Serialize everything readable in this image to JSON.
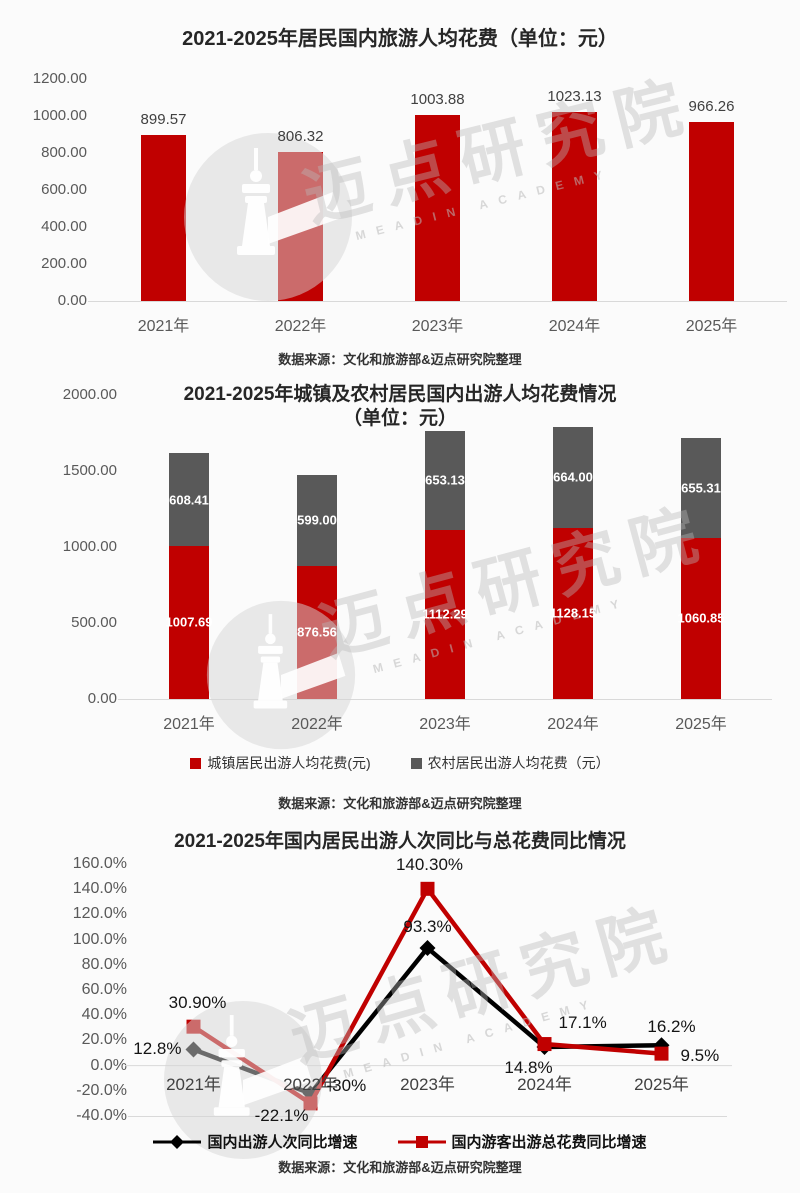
{
  "source_note": "数据来源：文化和旅游部&迈点研究院整理",
  "watermark": {
    "cn": "迈点研究院",
    "en": "MEADIN ACADEMY"
  },
  "colors": {
    "red": "#c00000",
    "gray": "#595959",
    "black": "#000000",
    "axis_line": "#d9d9d9"
  },
  "chart_data": [
    {
      "type": "bar",
      "title": "2021-2025年居民国内旅游人均花费（单位：元）",
      "categories": [
        "2021年",
        "2022年",
        "2023年",
        "2024年",
        "2025年"
      ],
      "values": [
        899.57,
        806.32,
        1003.88,
        1023.13,
        966.26
      ],
      "value_labels": [
        "899.57",
        "806.32",
        "1003.88",
        "1023.13",
        "966.26"
      ],
      "ylim": [
        0,
        1200
      ],
      "yticks": [
        "1200.00",
        "1000.00",
        "800.00",
        "600.00",
        "400.00",
        "200.00",
        "0.00"
      ],
      "bar_color": "#c00000",
      "grid": false,
      "legend_position": "none"
    },
    {
      "type": "bar",
      "subtype": "stacked",
      "title": "2021-2025年城镇及农村居民国内出游人均花费情况",
      "subtitle": "（单位：元）",
      "categories": [
        "2021年",
        "2022年",
        "2023年",
        "2024年",
        "2025年"
      ],
      "series": [
        {
          "name": "城镇居民出游人均花费(元)",
          "color": "#c00000",
          "values": [
            1007.69,
            876.56,
            1112.29,
            1128.15,
            1060.85
          ],
          "labels": [
            "1007.69",
            "876.56",
            "1112.29",
            "1128.15",
            "1060.85"
          ]
        },
        {
          "name": "农村居民出游人均花费（元）",
          "color": "#595959",
          "values": [
            608.41,
            599.0,
            653.13,
            664.0,
            655.31
          ],
          "labels": [
            "608.41",
            "599.00",
            "653.13",
            "664.00",
            "655.31"
          ]
        }
      ],
      "ylim": [
        0,
        2000
      ],
      "yticks": [
        "2000.00",
        "1500.00",
        "1000.00",
        "500.00",
        "0.00"
      ],
      "grid": false,
      "legend_position": "bottom"
    },
    {
      "type": "line",
      "title": "2021-2025年国内居民出游人次同比与总花费同比情况",
      "categories": [
        "2021年",
        "2022年",
        "2023年",
        "2024年",
        "2025年"
      ],
      "series": [
        {
          "name": "国内出游人次同比增速",
          "color": "#000000",
          "marker": "diamond",
          "values": [
            12.8,
            -22.1,
            93.3,
            14.8,
            16.2
          ],
          "labels": [
            "12.8%",
            "-22.1%",
            "93.3%",
            "14.8%",
            "16.2%"
          ]
        },
        {
          "name": "国内游客出游总花费同比增速",
          "color": "#c00000",
          "marker": "square",
          "values": [
            30.9,
            -30.0,
            140.3,
            17.1,
            9.5
          ],
          "labels": [
            "30.90%",
            "-30%",
            "140.30%",
            "17.1%",
            "9.5%"
          ]
        }
      ],
      "ylim": [
        -40,
        160
      ],
      "yticks": [
        "160.0%",
        "140.0%",
        "120.0%",
        "100.0%",
        "80.0%",
        "60.0%",
        "40.0%",
        "20.0%",
        "0.0%",
        "-20.0%",
        "-40.0%"
      ],
      "grid": false,
      "legend_position": "bottom"
    }
  ]
}
